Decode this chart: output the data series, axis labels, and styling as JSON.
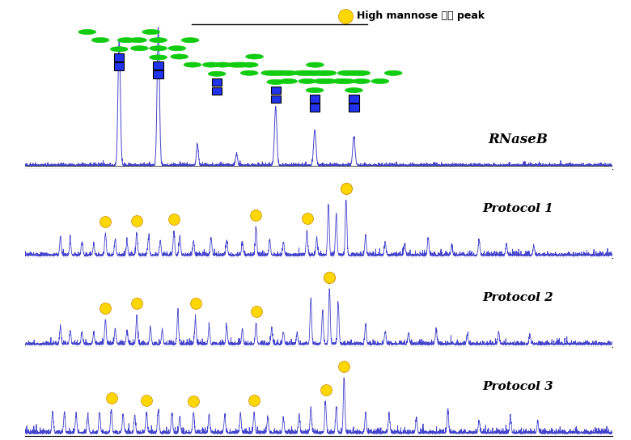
{
  "x_range": [
    2500,
    5500
  ],
  "x_ticks": [
    3000,
    4000,
    5000
  ],
  "panel_labels": [
    "RNaseB",
    "Protocol 1",
    "Protocol 2",
    "Protocol 3"
  ],
  "background_color": "#ffffff",
  "line_color": "#4444cc",
  "legend_dot_color": "#FFD700",
  "legend_text": "High mannose 예상 peak",
  "p1_markers": [
    2930,
    3080,
    3280,
    3700,
    3950,
    4065,
    4155
  ],
  "p2_markers": [
    2930,
    3080,
    3370,
    3690,
    3980,
    4065
  ],
  "p3_markers": [
    2940,
    3080,
    3280,
    3670,
    4040,
    4135
  ],
  "seed": 42
}
